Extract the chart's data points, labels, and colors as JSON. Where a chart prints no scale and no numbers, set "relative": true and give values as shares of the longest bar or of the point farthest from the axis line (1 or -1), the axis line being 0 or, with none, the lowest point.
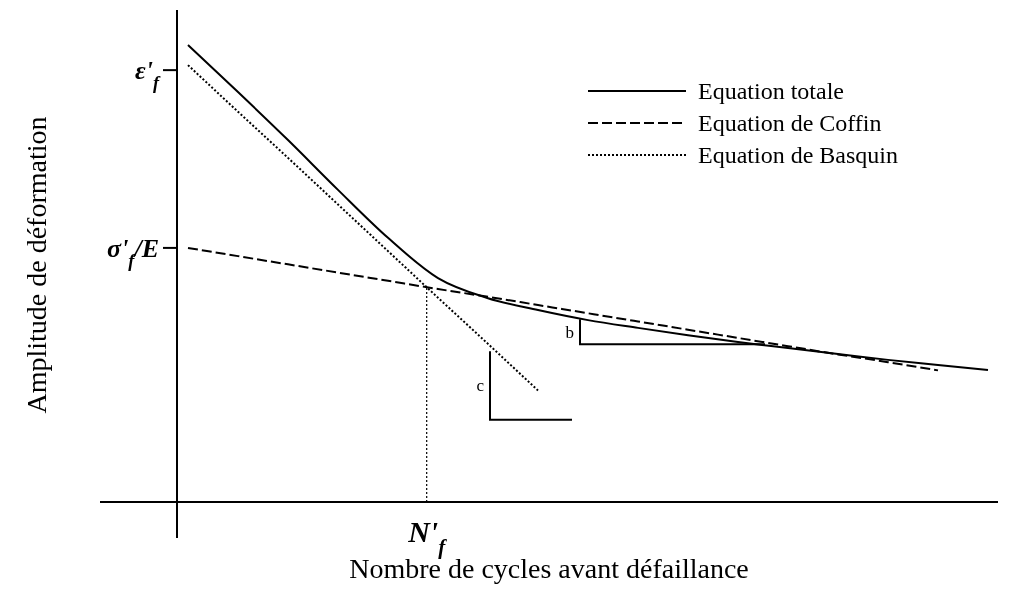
{
  "chart_data": {
    "type": "line",
    "relative": true,
    "xlabel": "Nombre de cycles avant défaillance",
    "ylabel": "Amplitude de déformation",
    "categories": [
      null,
      null,
      null,
      null,
      null,
      null,
      null,
      null,
      null,
      null,
      null,
      null,
      null,
      null,
      null,
      null,
      null
    ],
    "legend": "top right",
    "marker": "none",
    "series": [
      {
        "name": "Equation totale",
        "color": "#000000",
        "line_style": "solid",
        "values": [
          1,
          0.897,
          0.792,
          0.683,
          0.578,
          0.49,
          0.446,
          0.42,
          0.398,
          0.381,
          0.365,
          0.35,
          0.337,
          0.324,
          0.311,
          0.3,
          0.289
        ]
      },
      {
        "name": "Equation de Coffin",
        "color": "#000000",
        "line_style": "dashed",
        "values": [
          0.556,
          0.538,
          0.52,
          0.502,
          0.484,
          0.466,
          0.449,
          0.431,
          0.413,
          0.395,
          0.377,
          0.359,
          0.341,
          0.323,
          0.306,
          0.288,
          null
        ]
      },
      {
        "name": "Equation de Basquin",
        "color": "#000000",
        "line_style": "dotted",
        "values": [
          0.956,
          0.854,
          0.753,
          0.651,
          0.549,
          0.447,
          0.346,
          0.244,
          null,
          null,
          null,
          null,
          null,
          null,
          null,
          null,
          null
        ]
      }
    ],
    "annotations": [
      "ε'$_{f}$",
      "σ'$_{f}$/E",
      "N'$_{f}$",
      "b",
      "c"
    ]
  }
}
